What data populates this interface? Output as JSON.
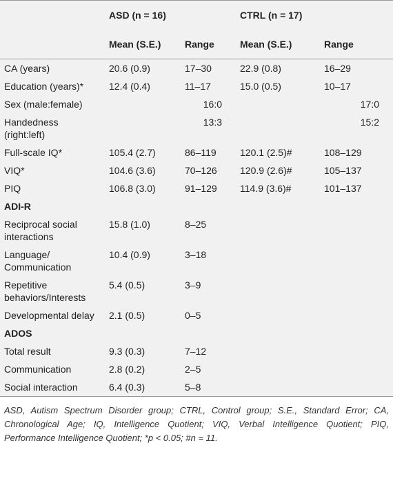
{
  "table": {
    "groups": [
      "ASD (n = 16)",
      "CTRL (n = 17)"
    ],
    "subheaders": [
      "Mean (S.E.)",
      "Range",
      "Mean (S.E.)",
      "Range"
    ],
    "rows": [
      {
        "label": "CA (years)",
        "cells": [
          "20.6 (0.9)",
          "17–30",
          "22.9 (0.8)",
          "16–29"
        ]
      },
      {
        "label": "Education (years)*",
        "cells": [
          "12.4 (0.4)",
          "11–17",
          "15.0 (0.5)",
          "10–17"
        ]
      },
      {
        "label": "Sex (male:female)",
        "span": [
          "16:0",
          "17:0"
        ]
      },
      {
        "label": "Handedness (right:left)",
        "span": [
          "13:3",
          "15:2"
        ]
      },
      {
        "label": "Full-scale IQ*",
        "cells": [
          "105.4 (2.7)",
          "86–119",
          "120.1 (2.5)#",
          "108–129"
        ]
      },
      {
        "label": "VIQ*",
        "cells": [
          "104.6 (3.6)",
          "70–126",
          "120.9 (2.6)#",
          "105–137"
        ]
      },
      {
        "label": "PIQ",
        "cells": [
          "106.8 (3.0)",
          "91–129",
          "114.9 (3.6)#",
          "101–137"
        ]
      },
      {
        "label": "ADI-R",
        "section": true
      },
      {
        "label": "Reciprocal social interactions",
        "cells": [
          "15.8 (1.0)",
          "8–25"
        ]
      },
      {
        "label": "Language/ Communication",
        "cells": [
          "10.4 (0.9)",
          "3–18"
        ]
      },
      {
        "label": "Repetitive behaviors/Interests",
        "cells": [
          "5.4 (0.5)",
          "3–9"
        ]
      },
      {
        "label": "Developmental delay",
        "cells": [
          "2.1 (0.5)",
          "0–5"
        ]
      },
      {
        "label": "ADOS",
        "section": true
      },
      {
        "label": "Total result",
        "cells": [
          "9.3 (0.3)",
          "7–12"
        ]
      },
      {
        "label": "Communication",
        "cells": [
          "2.8 (0.2)",
          "2–5"
        ]
      },
      {
        "label": "Social interaction",
        "cells": [
          "6.4 (0.3)",
          "5–8"
        ]
      }
    ]
  },
  "footnote": "ASD, Autism Spectrum Disorder group; CTRL, Control group; S.E., Standard Error; CA, Chronological Age; IQ, Intelligence Quotient; VIQ, Verbal Intelligence Quotient; PIQ, Performance Intelligence Quotient; *p < 0.05; #n = 11."
}
